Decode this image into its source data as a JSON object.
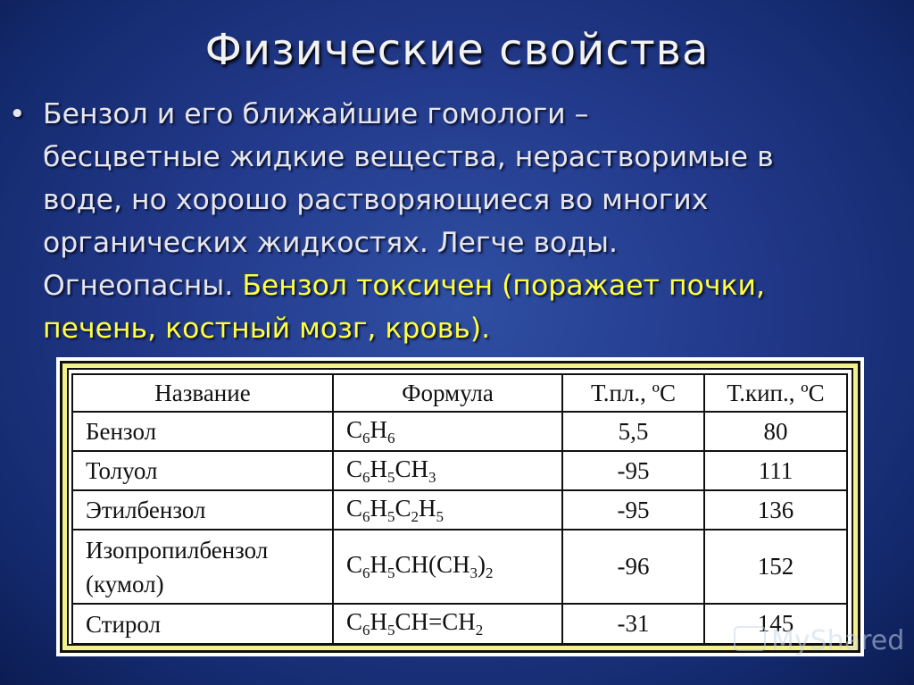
{
  "title": "Физические свойства",
  "body": {
    "bullet": "•",
    "lines": [
      "Бензол и его ближайшие гомологи –",
      "бесцветные жидкие вещества, нерастворимые в",
      "воде, но хорошо растворяющиеся во многих",
      "органических жидкостях. Легче воды."
    ],
    "line5_plain": "Огнеопасны. ",
    "line5_highlight": "Бензол токсичен (поражает почки,",
    "line6_highlight": "печень, костный мозг, кровь).",
    "highlight_color": "#ffff40"
  },
  "table": {
    "headers": [
      "Название",
      "Формула",
      "Т.пл., ºС",
      "Т.кип., ºС"
    ],
    "rows": [
      {
        "name": [
          "Бензол"
        ],
        "formula": [
          {
            "t": "C"
          },
          {
            "s": "6"
          },
          {
            "t": "H"
          },
          {
            "s": "6"
          }
        ],
        "mp": "5,5",
        "bp": "80"
      },
      {
        "name": [
          "Толуол"
        ],
        "formula": [
          {
            "t": "C"
          },
          {
            "s": "6"
          },
          {
            "t": "H"
          },
          {
            "s": "5"
          },
          {
            "t": "CH"
          },
          {
            "s": "3"
          }
        ],
        "mp": "-95",
        "bp": "111"
      },
      {
        "name": [
          "Этилбензол"
        ],
        "formula": [
          {
            "t": "C"
          },
          {
            "s": "6"
          },
          {
            "t": "H"
          },
          {
            "s": "5"
          },
          {
            "t": "C"
          },
          {
            "s": "2"
          },
          {
            "t": "H"
          },
          {
            "s": "5"
          }
        ],
        "mp": "-95",
        "bp": "136"
      },
      {
        "name": [
          "Изопропилбензол",
          "(кумол)"
        ],
        "formula": [
          {
            "t": "C"
          },
          {
            "s": "6"
          },
          {
            "t": "H"
          },
          {
            "s": "5"
          },
          {
            "t": "CH(CH"
          },
          {
            "s": "3"
          },
          {
            "t": ")"
          },
          {
            "s": "2"
          }
        ],
        "mp": "-96",
        "bp": "152"
      },
      {
        "name": [
          "Стирол"
        ],
        "formula": [
          {
            "t": "C"
          },
          {
            "s": "6"
          },
          {
            "t": "H"
          },
          {
            "s": "5"
          },
          {
            "t": "CH=CH"
          },
          {
            "s": "2"
          }
        ],
        "mp": "-31",
        "bp": "145"
      }
    ]
  },
  "watermark": "MyShared"
}
